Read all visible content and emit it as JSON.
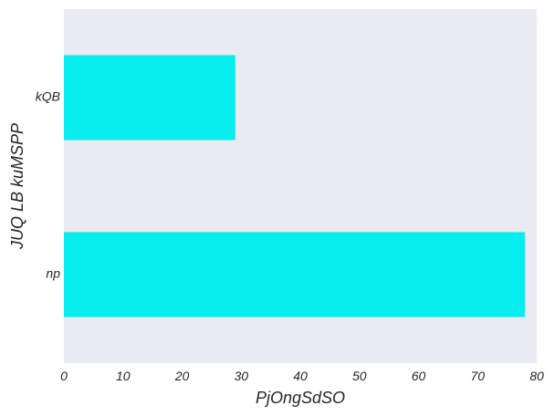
{
  "chart_data": {
    "type": "bar",
    "orientation": "horizontal",
    "categories": [
      "kQB",
      "np"
    ],
    "values": [
      29,
      78
    ],
    "xlabel": "PjOngSdSO",
    "ylabel": "JUQ LB  kuMSPP",
    "xlim": [
      0,
      80
    ],
    "xticks": [
      0,
      10,
      20,
      30,
      40,
      50,
      60,
      70,
      80
    ],
    "grid": false,
    "bar_color": "#08EEEE",
    "plot_background": "#EAEAF2"
  }
}
